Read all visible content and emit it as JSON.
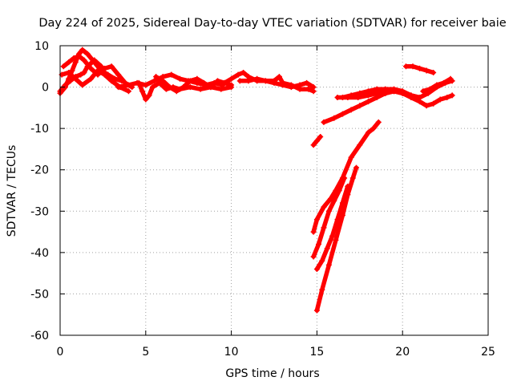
{
  "chart_data": {
    "type": "scatter",
    "title": "Day 224 of 2025, Sidereal Day-to-day VTEC variation (SDTVAR) for receiver baie",
    "xlabel": "GPS time / hours",
    "ylabel": "SDTVAR / TECUs",
    "xlim": [
      0,
      25
    ],
    "ylim": [
      -60,
      10
    ],
    "xticks": [
      0,
      5,
      10,
      15,
      20,
      25
    ],
    "yticks": [
      10,
      0,
      -10,
      -20,
      -30,
      -40,
      -50,
      -60
    ],
    "xtick_labels": [
      "0",
      "5",
      "10",
      "15",
      "20",
      "25"
    ],
    "ytick_labels": [
      "10",
      "0",
      "-10",
      "-20",
      "-30",
      "-40",
      "-50",
      "-60"
    ],
    "grid": true,
    "marker": "plus",
    "color": "#ff0000",
    "series": [
      {
        "name": "track-1",
        "points": [
          [
            0,
            -1.5
          ],
          [
            0.3,
            0
          ],
          [
            0.5,
            2
          ],
          [
            0.7,
            4
          ],
          [
            0.9,
            6
          ],
          [
            1.1,
            8
          ],
          [
            1.3,
            9
          ],
          [
            1.6,
            8
          ],
          [
            2.0,
            6
          ],
          [
            2.4,
            4
          ],
          [
            2.8,
            3
          ],
          [
            3.2,
            2
          ],
          [
            3.6,
            1.5
          ]
        ]
      },
      {
        "name": "track-2",
        "points": [
          [
            0.2,
            5
          ],
          [
            0.5,
            6
          ],
          [
            0.8,
            7
          ],
          [
            1.1,
            7.5
          ],
          [
            1.4,
            6.5
          ],
          [
            1.8,
            4.5
          ],
          [
            2.2,
            3
          ],
          [
            2.6,
            4.5
          ],
          [
            3.0,
            5
          ],
          [
            3.4,
            3
          ],
          [
            3.8,
            1
          ],
          [
            4.2,
            0
          ]
        ]
      },
      {
        "name": "track-3",
        "points": [
          [
            0.1,
            3
          ],
          [
            0.5,
            3.5
          ],
          [
            0.9,
            2
          ],
          [
            1.3,
            0.5
          ],
          [
            1.8,
            2
          ],
          [
            2.2,
            4
          ],
          [
            2.6,
            3
          ],
          [
            3.0,
            1.5
          ],
          [
            3.5,
            0
          ],
          [
            4.0,
            -1
          ]
        ]
      },
      {
        "name": "track-4",
        "points": [
          [
            0,
            -1
          ],
          [
            0.3,
            0.5
          ],
          [
            0.6,
            1.5
          ],
          [
            0.9,
            2.5
          ],
          [
            1.2,
            3
          ],
          [
            1.4,
            3.5
          ],
          [
            1.6,
            5
          ],
          [
            2.0,
            6.5
          ],
          [
            2.4,
            5
          ]
        ]
      },
      {
        "name": "track-5",
        "points": [
          [
            3.4,
            0
          ],
          [
            4.0,
            0.5
          ],
          [
            4.5,
            1
          ],
          [
            5.0,
            0.5
          ],
          [
            5.5,
            1.5
          ],
          [
            6.0,
            2.5
          ],
          [
            6.5,
            3
          ],
          [
            7.0,
            2
          ],
          [
            7.5,
            1.5
          ],
          [
            8.0,
            1
          ],
          [
            8.5,
            0.5
          ],
          [
            9.0,
            1
          ],
          [
            9.5,
            0.5
          ]
        ]
      },
      {
        "name": "track-6",
        "points": [
          [
            4.6,
            1
          ],
          [
            4.8,
            -1
          ],
          [
            5.0,
            -3
          ],
          [
            5.2,
            -2
          ],
          [
            5.4,
            0
          ],
          [
            5.8,
            1
          ],
          [
            6.2,
            -0.5
          ],
          [
            6.6,
            0
          ],
          [
            7.0,
            -0.5
          ],
          [
            7.6,
            0
          ],
          [
            8.2,
            -0.5
          ],
          [
            8.8,
            0
          ],
          [
            9.4,
            -0.5
          ],
          [
            10.0,
            0
          ]
        ]
      },
      {
        "name": "track-7",
        "points": [
          [
            5.6,
            2.5
          ],
          [
            6.0,
            1.5
          ],
          [
            6.4,
            0
          ],
          [
            6.8,
            -1
          ],
          [
            7.2,
            0
          ],
          [
            7.6,
            1.5
          ],
          [
            8.0,
            2
          ],
          [
            8.4,
            1
          ],
          [
            8.8,
            0
          ],
          [
            9.2,
            1.5
          ],
          [
            9.6,
            1
          ],
          [
            10.0,
            0.5
          ]
        ]
      },
      {
        "name": "track-8",
        "points": [
          [
            9.6,
            1
          ],
          [
            10.0,
            2
          ],
          [
            10.4,
            3
          ],
          [
            10.7,
            3.5
          ],
          [
            11.0,
            2.5
          ],
          [
            11.5,
            1.5
          ],
          [
            12.0,
            1.5
          ],
          [
            12.5,
            1
          ],
          [
            13.0,
            0.5
          ],
          [
            13.5,
            0
          ],
          [
            14.0,
            0.5
          ],
          [
            14.4,
            1
          ],
          [
            14.8,
            0
          ]
        ]
      },
      {
        "name": "track-9",
        "points": [
          [
            10.5,
            1.5
          ],
          [
            11.0,
            1.5
          ],
          [
            11.5,
            2
          ],
          [
            12.0,
            1.5
          ],
          [
            12.5,
            1.5
          ],
          [
            12.8,
            2.5
          ],
          [
            13.0,
            1
          ],
          [
            13.5,
            0.5
          ],
          [
            14.0,
            -0.5
          ],
          [
            14.5,
            -0.5
          ],
          [
            14.8,
            -1
          ]
        ]
      },
      {
        "name": "track-10",
        "points": [
          [
            14.8,
            -14
          ],
          [
            15.0,
            -13
          ],
          [
            15.2,
            -12
          ]
        ]
      },
      {
        "name": "track-11",
        "points": [
          [
            14.8,
            -35
          ],
          [
            15.0,
            -32
          ],
          [
            15.4,
            -29
          ],
          [
            15.8,
            -27
          ],
          [
            16.1,
            -25
          ],
          [
            16.5,
            -22
          ],
          [
            17.0,
            -17
          ],
          [
            17.5,
            -14
          ],
          [
            18.0,
            -11
          ],
          [
            18.3,
            -10
          ],
          [
            18.6,
            -8.5
          ]
        ]
      },
      {
        "name": "track-12",
        "points": [
          [
            14.8,
            -41
          ],
          [
            15.1,
            -38
          ],
          [
            15.4,
            -34
          ],
          [
            15.7,
            -30
          ],
          [
            16.0,
            -27.5
          ],
          [
            16.3,
            -25
          ],
          [
            16.6,
            -22
          ]
        ]
      },
      {
        "name": "track-13",
        "points": [
          [
            15.0,
            -44
          ],
          [
            15.3,
            -42
          ],
          [
            15.6,
            -39
          ],
          [
            15.9,
            -36
          ],
          [
            16.2,
            -32
          ],
          [
            16.5,
            -28
          ],
          [
            16.8,
            -24
          ]
        ]
      },
      {
        "name": "track-14",
        "points": [
          [
            15.0,
            -54
          ],
          [
            15.3,
            -49
          ],
          [
            15.7,
            -43
          ],
          [
            16.1,
            -37
          ],
          [
            16.5,
            -31
          ],
          [
            16.8,
            -26
          ],
          [
            17.1,
            -22
          ],
          [
            17.3,
            -19.5
          ]
        ]
      },
      {
        "name": "track-15",
        "points": [
          [
            15.4,
            -8.5
          ],
          [
            16.0,
            -7.5
          ],
          [
            16.5,
            -6.5
          ],
          [
            17.0,
            -5.5
          ],
          [
            17.5,
            -4.5
          ],
          [
            18.0,
            -3.5
          ],
          [
            18.5,
            -2.5
          ],
          [
            19.0,
            -1.5
          ],
          [
            19.5,
            -1
          ],
          [
            20.0,
            -1.5
          ],
          [
            20.5,
            -2.5
          ],
          [
            21.0,
            -3.5
          ],
          [
            21.4,
            -4.5
          ],
          [
            21.8,
            -4
          ],
          [
            22.2,
            -3
          ],
          [
            22.6,
            -2.5
          ],
          [
            22.9,
            -2
          ]
        ]
      },
      {
        "name": "track-16",
        "points": [
          [
            16.2,
            -2.5
          ],
          [
            16.8,
            -2.5
          ],
          [
            17.4,
            -2.5
          ],
          [
            18.0,
            -2
          ],
          [
            18.5,
            -1.5
          ],
          [
            19.0,
            -1.5
          ],
          [
            19.5,
            -1
          ],
          [
            20.0,
            -1.5
          ],
          [
            20.5,
            -2
          ],
          [
            21.0,
            -2.5
          ]
        ]
      },
      {
        "name": "track-17",
        "points": [
          [
            16.5,
            -2.5
          ],
          [
            17.0,
            -2
          ],
          [
            17.5,
            -1.5
          ],
          [
            18.0,
            -1
          ],
          [
            18.5,
            -0.5
          ],
          [
            19.0,
            -0.5
          ],
          [
            19.5,
            -0.5
          ],
          [
            20.0,
            -1
          ],
          [
            20.5,
            -2
          ],
          [
            21.0,
            -2.5
          ],
          [
            21.5,
            -1.5
          ],
          [
            22.0,
            0
          ],
          [
            22.5,
            1
          ],
          [
            22.9,
            1.5
          ]
        ]
      },
      {
        "name": "track-18",
        "points": [
          [
            20.2,
            5
          ],
          [
            20.6,
            5
          ],
          [
            21.0,
            4.5
          ],
          [
            21.4,
            4
          ],
          [
            21.8,
            3.5
          ]
        ]
      },
      {
        "name": "track-19",
        "points": [
          [
            21.2,
            -1
          ],
          [
            21.6,
            -0.5
          ],
          [
            22.0,
            0.5
          ],
          [
            22.4,
            1
          ],
          [
            22.8,
            2
          ]
        ]
      }
    ]
  }
}
